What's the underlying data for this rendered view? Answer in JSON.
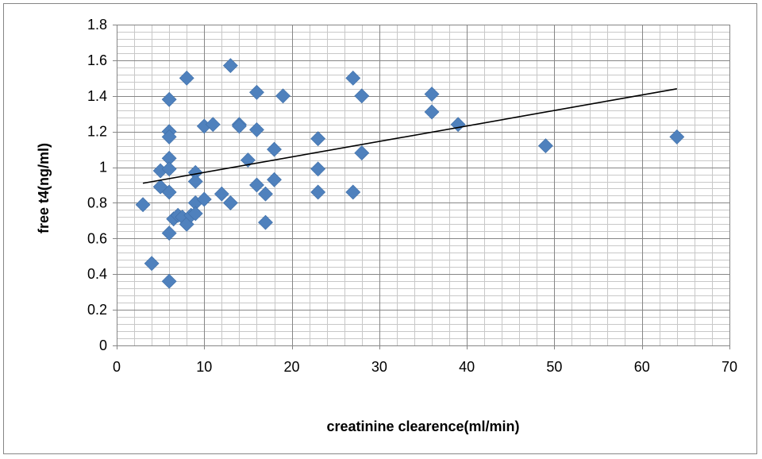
{
  "chart_data": {
    "type": "scatter",
    "title": "",
    "xlabel": "creatinine clearence(ml/min)",
    "ylabel": "free t4(ng/ml)",
    "xlim": [
      0,
      70
    ],
    "ylim": [
      0,
      1.8
    ],
    "x_ticks": [
      0,
      10,
      20,
      30,
      40,
      50,
      60,
      70
    ],
    "y_ticks": [
      0,
      0.2,
      0.4,
      0.6,
      0.8,
      1,
      1.2,
      1.4,
      1.6,
      1.8
    ],
    "x_tick_labels": [
      "0",
      "10",
      "20",
      "30",
      "40",
      "50",
      "60",
      "70"
    ],
    "y_tick_labels": [
      "0",
      "0.2",
      "0.4",
      "0.6",
      "0.8",
      "1",
      "1.2",
      "1.4",
      "1.6",
      "1.8"
    ],
    "grid": true,
    "minor_grid": true,
    "legend": "none",
    "marker": "diamond",
    "marker_color": "#4f81bd",
    "gridline_color": "#868686",
    "trendline": {
      "type": "linear",
      "x": [
        3,
        64
      ],
      "y": [
        0.91,
        1.44
      ],
      "color": "#000000"
    },
    "series": [
      {
        "points": [
          [
            3,
            0.79
          ],
          [
            4,
            0.46
          ],
          [
            5,
            0.98
          ],
          [
            5,
            0.89
          ],
          [
            6,
            1.38
          ],
          [
            6,
            1.2
          ],
          [
            6,
            1.17
          ],
          [
            6,
            1.05
          ],
          [
            6,
            0.99
          ],
          [
            6,
            0.86
          ],
          [
            6,
            0.63
          ],
          [
            6,
            0.36
          ],
          [
            6.5,
            0.71
          ],
          [
            7,
            0.73
          ],
          [
            7.5,
            0.72
          ],
          [
            8,
            1.5
          ],
          [
            8,
            0.68
          ],
          [
            8.5,
            0.73
          ],
          [
            9,
            0.97
          ],
          [
            9,
            0.92
          ],
          [
            9,
            0.8
          ],
          [
            9,
            0.74
          ],
          [
            10,
            1.23
          ],
          [
            10,
            0.82
          ],
          [
            11,
            1.24
          ],
          [
            12,
            0.85
          ],
          [
            13,
            1.57
          ],
          [
            13,
            0.8
          ],
          [
            14,
            1.24
          ],
          [
            14,
            1.23
          ],
          [
            15,
            1.04
          ],
          [
            16,
            1.42
          ],
          [
            16,
            1.21
          ],
          [
            16,
            0.9
          ],
          [
            17,
            0.85
          ],
          [
            17,
            0.69
          ],
          [
            18,
            1.1
          ],
          [
            18,
            0.93
          ],
          [
            19,
            1.4
          ],
          [
            23,
            1.16
          ],
          [
            23,
            0.99
          ],
          [
            23,
            0.86
          ],
          [
            27,
            1.5
          ],
          [
            27,
            0.86
          ],
          [
            28,
            1.4
          ],
          [
            28,
            1.08
          ],
          [
            36,
            1.41
          ],
          [
            36,
            1.31
          ],
          [
            39,
            1.24
          ],
          [
            49,
            1.12
          ],
          [
            64,
            1.17
          ]
        ]
      }
    ]
  }
}
